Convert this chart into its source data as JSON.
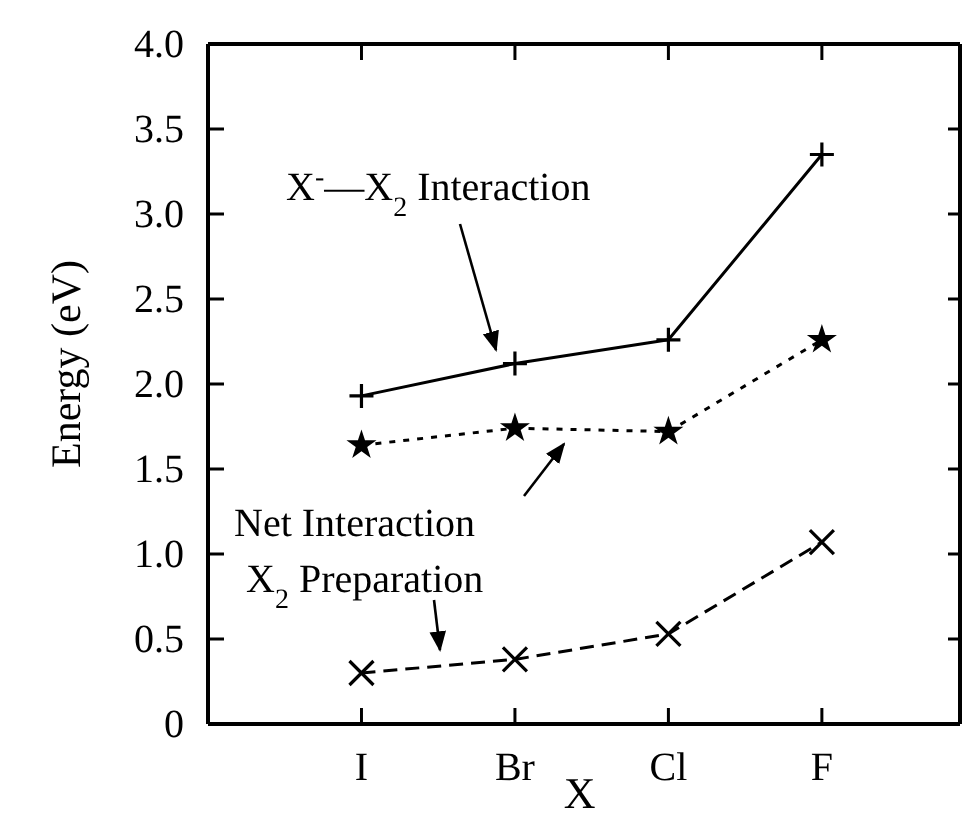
{
  "chart_data": {
    "type": "line",
    "xlabel": "X",
    "ylabel": "Energy (eV)",
    "categories": [
      "I",
      "Br",
      "Cl",
      "F"
    ],
    "ylim": [
      0,
      4
    ],
    "yticks": [
      0,
      {
        "value": 0.5,
        "label": "0.5"
      },
      {
        "value": 1,
        "label": "1.0"
      },
      {
        "value": 1.5,
        "label": "1.5"
      },
      {
        "value": 2,
        "label": "2.0"
      },
      {
        "value": 2.5,
        "label": "2.5"
      },
      {
        "value": 3,
        "label": "3.0"
      },
      {
        "value": 3.5,
        "label": "3.5"
      },
      {
        "value": 4,
        "label": "4.0"
      }
    ],
    "grid": false,
    "series": [
      {
        "name": "X$^{-}$—X$_{2}$ Interaction",
        "color": "#000000",
        "values": [
          1.93,
          2.12,
          2.26,
          3.35
        ],
        "marker": "cross",
        "line_style": "solid"
      },
      {
        "name": "Net Interaction",
        "color": "#000000",
        "values": [
          1.64,
          1.74,
          1.72,
          2.26
        ],
        "marker": "star",
        "line_style": "dotted"
      },
      {
        "name": "X$_{2}$ Preparation",
        "color": "#000000",
        "values": [
          0.3,
          0.38,
          0.53,
          1.07
        ],
        "marker": "x",
        "line_style": "dashed"
      }
    ]
  }
}
